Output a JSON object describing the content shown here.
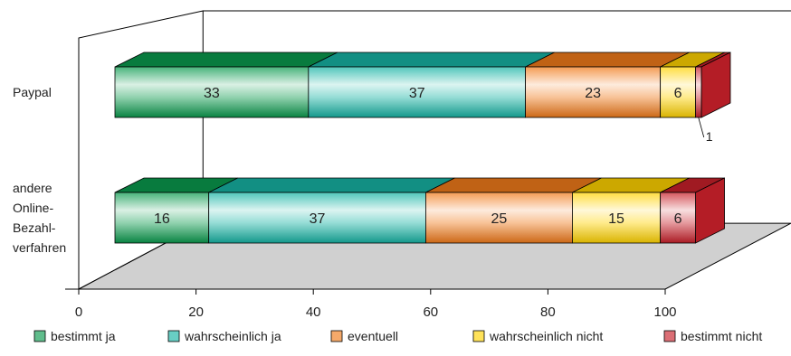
{
  "chart_data": {
    "type": "bar",
    "orientation": "horizontal",
    "stacked": true,
    "style": "3d",
    "categories": [
      "Paypal",
      "andere Online-Bezahlverfahren"
    ],
    "category_label_lines": [
      [
        "Paypal"
      ],
      [
        "andere",
        "Online-",
        "Bezahl-",
        "verfahren"
      ]
    ],
    "series": [
      {
        "name": "bestimmt ja",
        "values": [
          33,
          16
        ],
        "color": "#0a9a4e"
      },
      {
        "name": "wahrscheinlich ja",
        "values": [
          37,
          37
        ],
        "color": "#16b3a4"
      },
      {
        "name": "eventuell",
        "values": [
          23,
          25
        ],
        "color": "#f07a1a"
      },
      {
        "name": "wahrscheinlich nicht",
        "values": [
          6,
          15
        ],
        "color": "#ffd200"
      },
      {
        "name": "bestimmt nicht",
        "values": [
          1,
          6
        ],
        "color": "#c8202a"
      }
    ],
    "data_labels": [
      [
        "33",
        "37",
        "23",
        "6",
        "1"
      ],
      [
        "16",
        "37",
        "25",
        "15",
        "6"
      ]
    ],
    "xlim": [
      0,
      100
    ],
    "xticks": [
      "0",
      "20",
      "40",
      "60",
      "80",
      "100"
    ],
    "legend": "bottom",
    "grid": false
  }
}
